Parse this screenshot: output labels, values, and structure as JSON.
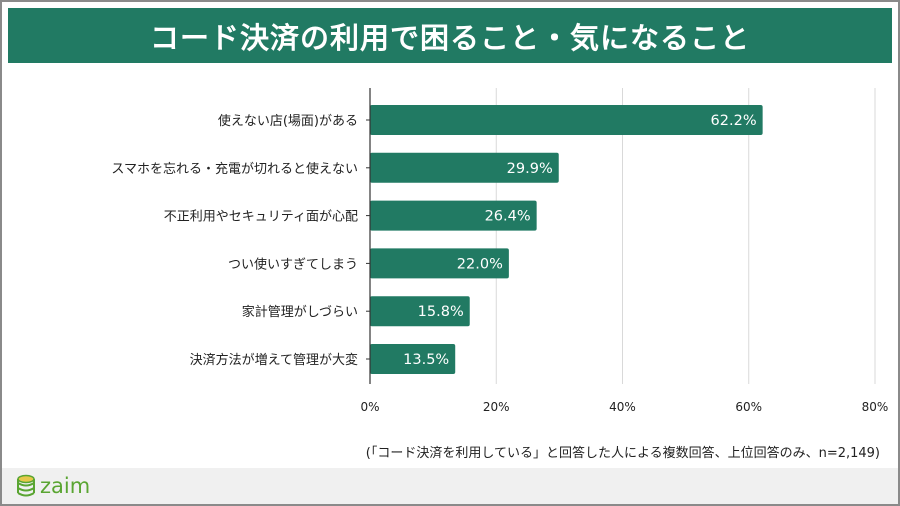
{
  "header": {
    "title": "コード決済の利用で困ること・気になること"
  },
  "chart_data": {
    "type": "bar",
    "orientation": "horizontal",
    "title": "コード決済の利用で困ること・気になること",
    "categories": [
      "使えない店(場面)がある",
      "スマホを忘れる・充電が切れると使えない",
      "不正利用やセキュリティ面が心配",
      "つい使いすぎてしまう",
      "家計管理がしづらい",
      "決済方法が増えて管理が大変"
    ],
    "values": [
      62.2,
      29.9,
      26.4,
      22.0,
      15.8,
      13.5
    ],
    "value_labels": [
      "62.2%",
      "29.9%",
      "26.4%",
      "22.0%",
      "15.8%",
      "13.5%"
    ],
    "xlim": [
      0,
      80
    ],
    "ticks": [
      "0%",
      "20%",
      "40%",
      "60%",
      "80%"
    ],
    "grid": true,
    "bar_color": "#217a63"
  },
  "note": "(「コード決済を利用している」と回答した人による複数回答、上位回答のみ、n=2,149)",
  "footer": {
    "logo_text": "zaim"
  }
}
